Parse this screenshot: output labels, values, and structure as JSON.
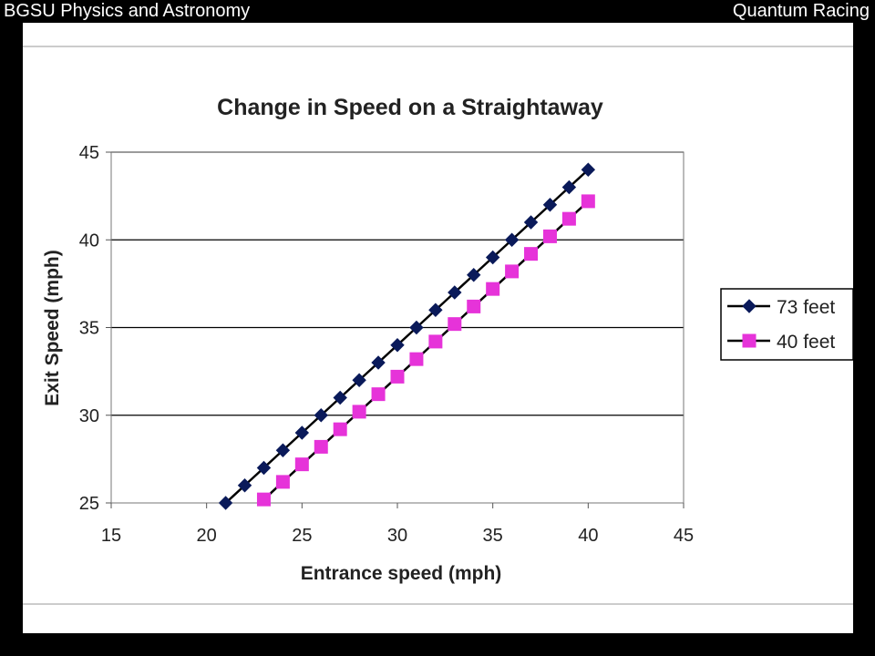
{
  "header": {
    "left": "BGSU Physics and Astronomy",
    "right": "Quantum Racing"
  },
  "colors": {
    "background": "#000000",
    "header_text": "#ffffff",
    "series_73": "#0a1a5a",
    "series_40": "#e633d9",
    "line": "#000000"
  },
  "chart_data": {
    "type": "line",
    "title": "Change in Speed on a Straightaway",
    "xlabel": "Entrance speed (mph)",
    "ylabel": "Exit Speed (mph)",
    "xlim": [
      15,
      45
    ],
    "ylim": [
      25,
      45
    ],
    "xticks": [
      15,
      20,
      25,
      30,
      35,
      40,
      45
    ],
    "yticks": [
      25,
      30,
      35,
      40,
      45
    ],
    "grid": "horizontal major gridlines",
    "legend_position": "right",
    "series": [
      {
        "name": "73 feet",
        "marker": "diamond",
        "color": "#0a1a5a",
        "x": [
          21,
          22,
          23,
          24,
          25,
          26,
          27,
          28,
          29,
          30,
          31,
          32,
          33,
          34,
          35,
          36,
          37,
          38,
          39,
          40
        ],
        "y": [
          25,
          26,
          27,
          28,
          29,
          30,
          31,
          32,
          33,
          34,
          35,
          36,
          37,
          38,
          39,
          40,
          41,
          42,
          43,
          44
        ]
      },
      {
        "name": "40 feet",
        "marker": "square",
        "color": "#e633d9",
        "x": [
          23,
          24,
          25,
          26,
          27,
          28,
          29,
          30,
          31,
          32,
          33,
          34,
          35,
          36,
          37,
          38,
          39,
          40
        ],
        "y": [
          25.2,
          26.2,
          27.2,
          28.2,
          29.2,
          30.2,
          31.2,
          32.2,
          33.2,
          34.2,
          35.2,
          36.2,
          37.2,
          38.2,
          39.2,
          40.2,
          41.2,
          42.2
        ]
      }
    ]
  }
}
